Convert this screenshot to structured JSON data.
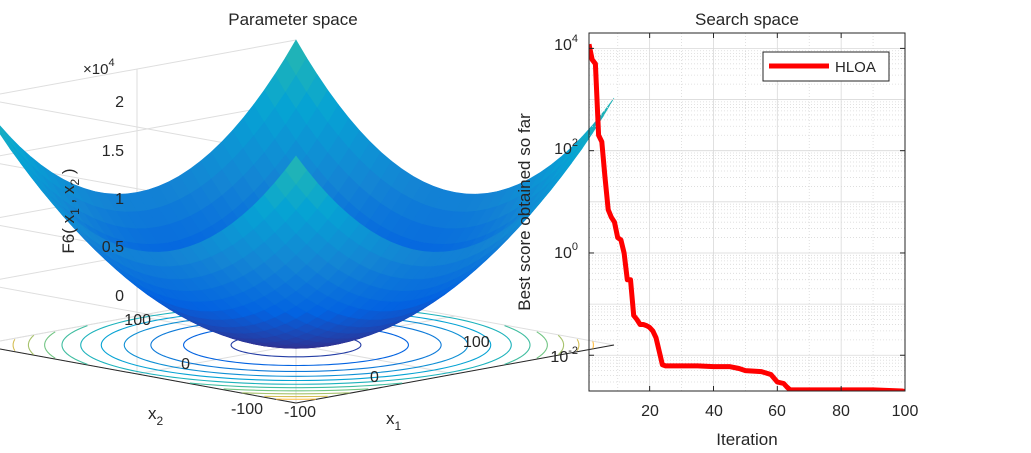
{
  "chart_data": [
    {
      "type": "surface",
      "title": "Parameter space",
      "xlabel": "x",
      "xlabel_sub": "1",
      "ylabel": "x",
      "ylabel_sub": "2",
      "zlabel": "F6( x  , x  )",
      "zlabel_parts": {
        "f": "F6( x",
        "sub1": "1",
        "mid": " , x",
        "sub2": "2",
        "end": " )"
      },
      "z_multiplier": {
        "base": "×10",
        "exp": "4"
      },
      "xlim": [
        -100,
        100
      ],
      "ylim": [
        -100,
        100
      ],
      "zlim": [
        0,
        20000
      ],
      "x_ticks": [
        "-100",
        "0",
        "100"
      ],
      "y_ticks": [
        "-100",
        "0",
        "100"
      ],
      "z_ticks": [
        "0",
        "0.5",
        "1",
        "1.5",
        "2"
      ],
      "function": "z = x1^2 + x2^2",
      "colormap": "parula",
      "contour_levels": 12
    },
    {
      "type": "line",
      "title": "Search space",
      "xlabel": "Iteration",
      "ylabel": "Best score obtained so far",
      "yscale": "log",
      "xlim": [
        1,
        100
      ],
      "ylim": [
        0.002,
        20000
      ],
      "x_ticks": [
        "20",
        "40",
        "60",
        "80",
        "100"
      ],
      "y_ticks": [
        {
          "base": "10",
          "exp": "-2",
          "value": 0.01
        },
        {
          "base": "10",
          "exp": "0",
          "value": 1
        },
        {
          "base": "10",
          "exp": "2",
          "value": 100
        },
        {
          "base": "10",
          "exp": "4",
          "value": 10000
        }
      ],
      "grid": true,
      "legend_position": "top-right",
      "series": [
        {
          "name": "HLOA",
          "color": "#ff0000",
          "x": [
            1,
            2,
            3,
            4,
            5,
            6,
            7,
            8,
            9,
            10,
            11,
            12,
            13,
            14,
            15,
            16,
            17,
            18,
            19,
            20,
            21,
            22,
            23,
            24,
            25,
            26,
            30,
            35,
            40,
            45,
            48,
            50,
            55,
            58,
            60,
            62,
            63,
            64,
            70,
            80,
            90,
            95,
            99,
            100
          ],
          "y": [
            12000,
            6000,
            5000,
            200,
            150,
            30,
            7,
            5,
            4,
            2,
            1.8,
            1,
            0.3,
            0.3,
            0.06,
            0.05,
            0.04,
            0.04,
            0.038,
            0.035,
            0.03,
            0.022,
            0.012,
            0.0065,
            0.0062,
            0.0062,
            0.0062,
            0.0062,
            0.006,
            0.006,
            0.0055,
            0.005,
            0.0048,
            0.0042,
            0.003,
            0.0028,
            0.0024,
            0.0021,
            0.0021,
            0.0021,
            0.0021,
            0.00205,
            0.002,
            0.00195
          ]
        }
      ]
    }
  ]
}
